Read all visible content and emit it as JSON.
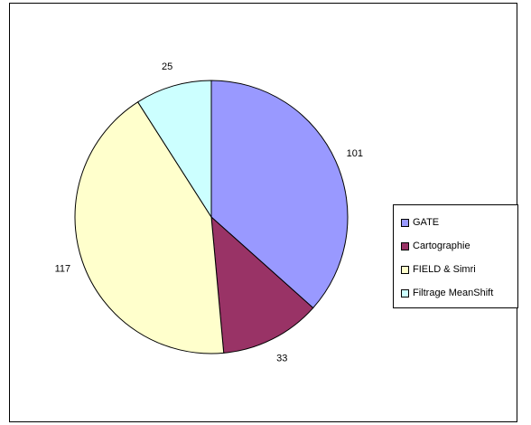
{
  "chart_data": {
    "type": "pie",
    "title": "",
    "categories": [
      "GATE",
      "Cartographie",
      "FIELD & Simri",
      "Filtrage MeanShift"
    ],
    "values": [
      101,
      33,
      117,
      25
    ],
    "value_labels": [
      "101",
      "33",
      "117",
      "25"
    ],
    "colors": [
      "#9999FF",
      "#993366",
      "#FFFFCC",
      "#CCFFFF"
    ],
    "legend_placement": "right"
  }
}
